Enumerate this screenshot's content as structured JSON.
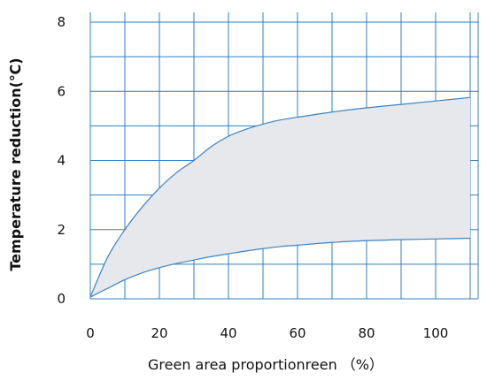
{
  "chart_data": {
    "type": "area",
    "title": "",
    "xlabel": "Green area proportionreen （%）",
    "ylabel": "Temperature reduction(℃)",
    "xlim": [
      0,
      110
    ],
    "ylim": [
      0,
      8.3
    ],
    "x_ticks": [
      0,
      20,
      40,
      60,
      80,
      100
    ],
    "y_ticks": [
      0,
      2,
      4,
      6,
      8
    ],
    "grid": true,
    "grid_x_step": 10,
    "grid_y_step": 1,
    "legend": "none",
    "series": [
      {
        "role": "upper-bound",
        "x": [
          0,
          5,
          10,
          15,
          20,
          25,
          30,
          35,
          40,
          45,
          50,
          55,
          60,
          70,
          80,
          90,
          100,
          110
        ],
        "y": [
          0.05,
          1.2,
          2.0,
          2.65,
          3.2,
          3.65,
          4.0,
          4.4,
          4.7,
          4.9,
          5.05,
          5.17,
          5.25,
          5.4,
          5.52,
          5.62,
          5.72,
          5.82
        ]
      },
      {
        "role": "lower-bound",
        "x": [
          0,
          5,
          10,
          15,
          20,
          25,
          30,
          35,
          40,
          45,
          50,
          55,
          60,
          70,
          80,
          90,
          100,
          110
        ],
        "y": [
          0.05,
          0.3,
          0.55,
          0.75,
          0.9,
          1.02,
          1.12,
          1.22,
          1.3,
          1.38,
          1.45,
          1.51,
          1.55,
          1.63,
          1.68,
          1.71,
          1.73,
          1.75
        ]
      }
    ],
    "colors": {
      "grid": "#2e7fc4",
      "curve": "#3a84c4",
      "band_fill": "#e6e8eb"
    }
  }
}
